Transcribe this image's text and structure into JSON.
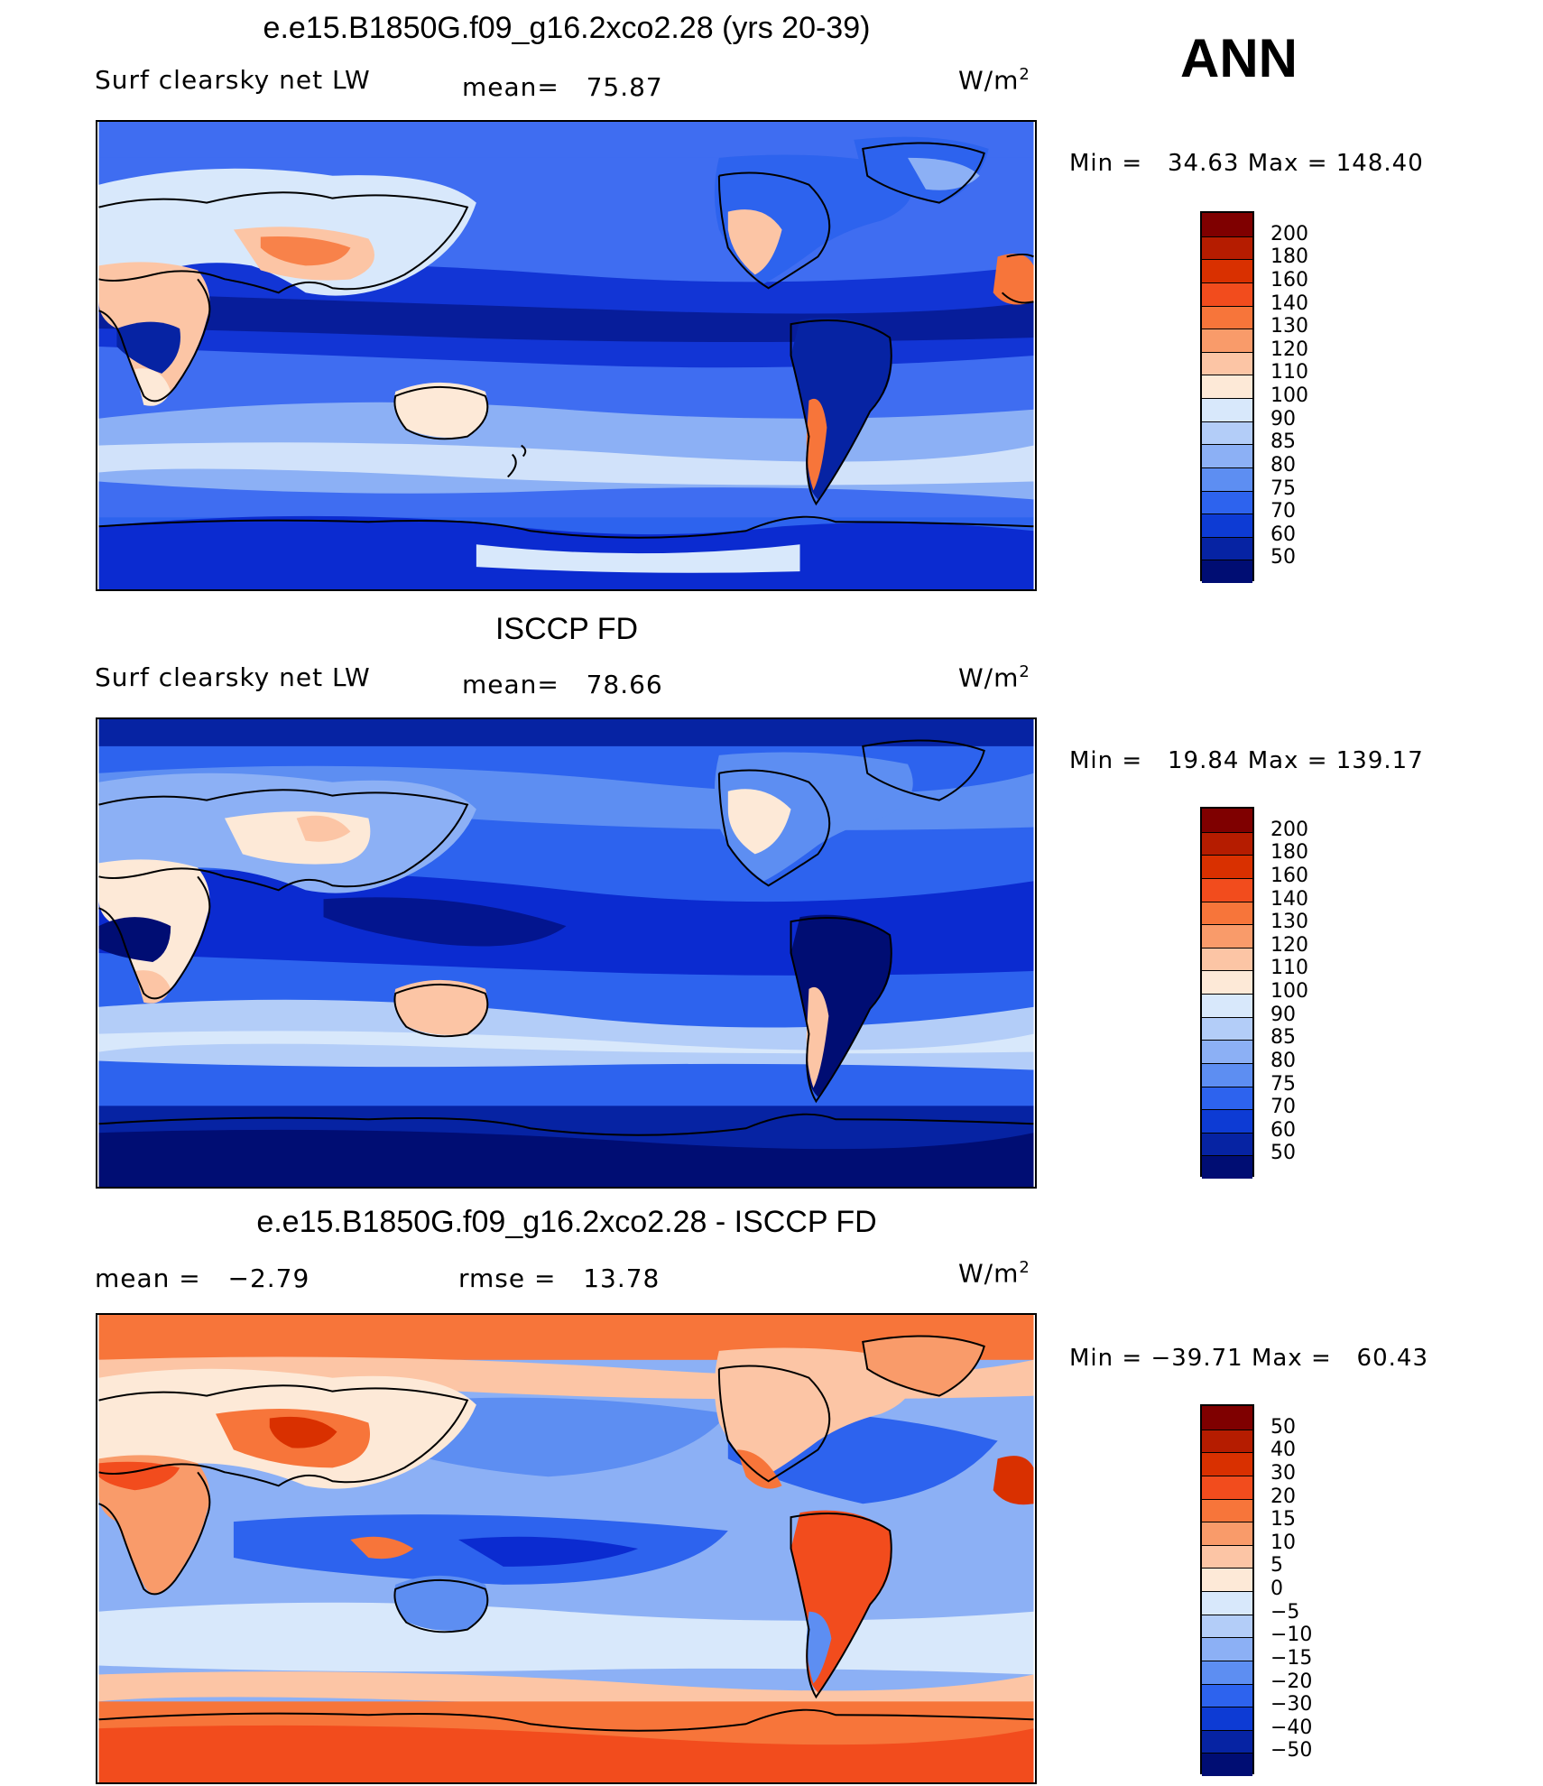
{
  "season": "ANN",
  "panels": [
    {
      "title": "e.e15.B1850G.f09_g16.2xco2.28 (yrs 20-39)",
      "subtitle_left": "Surf clearsky net LW",
      "stat1_label": "mean=",
      "stat1_value": "75.87",
      "stat2_label": "",
      "stat2_value": "",
      "units": "W/m",
      "units_sup": "2",
      "min_label": "Min =",
      "min_value": "34.63",
      "max_label": "Max =",
      "max_value": "148.40",
      "colorbar": {
        "labels": [
          "200",
          "180",
          "160",
          "140",
          "130",
          "120",
          "110",
          "100",
          "90",
          "85",
          "80",
          "75",
          "70",
          "60",
          "50"
        ],
        "colors": [
          "#7f0000",
          "#b51c00",
          "#d93000",
          "#f24c1d",
          "#f7753a",
          "#f99b6a",
          "#fcc5a5",
          "#fde9d7",
          "#d8e8fb",
          "#b3cdf8",
          "#8cb0f5",
          "#5d8ef2",
          "#2d63ee",
          "#0d3bd4",
          "#0623a3",
          "#000d73"
        ]
      }
    },
    {
      "title": "ISCCP FD",
      "subtitle_left": "Surf clearsky net LW",
      "stat1_label": "mean=",
      "stat1_value": "78.66",
      "stat2_label": "",
      "stat2_value": "",
      "units": "W/m",
      "units_sup": "2",
      "min_label": "Min =",
      "min_value": "19.84",
      "max_label": "Max =",
      "max_value": "139.17",
      "colorbar": {
        "labels": [
          "200",
          "180",
          "160",
          "140",
          "130",
          "120",
          "110",
          "100",
          "90",
          "85",
          "80",
          "75",
          "70",
          "60",
          "50"
        ],
        "colors": [
          "#7f0000",
          "#b51c00",
          "#d93000",
          "#f24c1d",
          "#f7753a",
          "#f99b6a",
          "#fcc5a5",
          "#fde9d7",
          "#d8e8fb",
          "#b3cdf8",
          "#8cb0f5",
          "#5d8ef2",
          "#2d63ee",
          "#0d3bd4",
          "#0623a3",
          "#000d73"
        ]
      }
    },
    {
      "title": "e.e15.B1850G.f09_g16.2xco2.28 - ISCCP FD",
      "subtitle_left": "",
      "stat1_label": "mean =",
      "stat1_value": "−2.79",
      "stat2_label": "rmse =",
      "stat2_value": "13.78",
      "units": "W/m",
      "units_sup": "2",
      "min_label": "Min =",
      "min_value": "−39.71",
      "max_label": "Max =",
      "max_value": "60.43",
      "colorbar": {
        "labels": [
          "50",
          "40",
          "30",
          "20",
          "15",
          "10",
          "5",
          "0",
          "−5",
          "−10",
          "−15",
          "−20",
          "−30",
          "−40",
          "−50"
        ],
        "colors": [
          "#7f0000",
          "#b51c00",
          "#d93000",
          "#f24c1d",
          "#f7753a",
          "#f99b6a",
          "#fcc5a5",
          "#fde9d7",
          "#d8e8fb",
          "#b3cdf8",
          "#8cb0f5",
          "#5d8ef2",
          "#2d63ee",
          "#0d3bd4",
          "#0623a3",
          "#000d73"
        ]
      }
    }
  ],
  "map_colors": {
    "ocean_deep": "#0b2bd0",
    "ocean_mid": "#3f6df1",
    "ocean_light": "#8cb0f5",
    "pale": "#d8e8fb",
    "warm_light": "#fcc5a5",
    "warm": "#f7753a",
    "hot": "#d93000",
    "coast": "#000000"
  }
}
